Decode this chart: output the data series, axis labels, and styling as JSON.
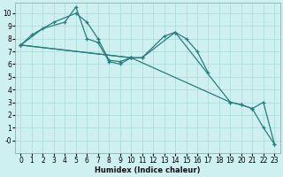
{
  "xlabel": "Humidex (Indice chaleur)",
  "background_color": "#cff0f0",
  "grid_color": "#aadada",
  "line_color": "#2a7d7d",
  "xlim": [
    -0.5,
    23.5
  ],
  "ylim": [
    -1.0,
    10.8
  ],
  "xticks": [
    0,
    1,
    2,
    3,
    4,
    5,
    6,
    7,
    8,
    9,
    10,
    11,
    12,
    13,
    14,
    15,
    16,
    17,
    18,
    19,
    20,
    21,
    22,
    23
  ],
  "yticks": [
    0,
    1,
    2,
    3,
    4,
    5,
    6,
    7,
    8,
    9,
    10
  ],
  "ytick_labels": [
    "-0",
    "1",
    "2",
    "3",
    "4",
    "5",
    "6",
    "7",
    "8",
    "9",
    "10"
  ],
  "curves": [
    {
      "x": [
        0,
        1,
        3,
        5,
        6,
        7,
        8,
        9,
        10
      ],
      "y": [
        7.5,
        8.3,
        9.3,
        10.0,
        9.3,
        8.0,
        6.3,
        6.2,
        6.5
      ]
    },
    {
      "x": [
        0,
        2,
        4,
        5,
        6,
        7,
        8,
        9,
        10,
        11,
        13,
        14,
        15,
        16,
        17
      ],
      "y": [
        7.5,
        8.8,
        9.3,
        10.5,
        8.0,
        7.7,
        6.2,
        6.0,
        6.5,
        6.5,
        8.2,
        8.5,
        8.0,
        7.0,
        5.3
      ]
    },
    {
      "x": [
        0,
        10,
        11,
        14,
        19,
        20,
        21,
        22,
        23
      ],
      "y": [
        7.5,
        6.5,
        6.5,
        8.5,
        3.0,
        2.8,
        2.5,
        1.0,
        -0.3
      ]
    },
    {
      "x": [
        0,
        10,
        19,
        20,
        21,
        22,
        23
      ],
      "y": [
        7.5,
        6.5,
        3.0,
        2.8,
        2.5,
        3.0,
        -0.3
      ]
    }
  ]
}
